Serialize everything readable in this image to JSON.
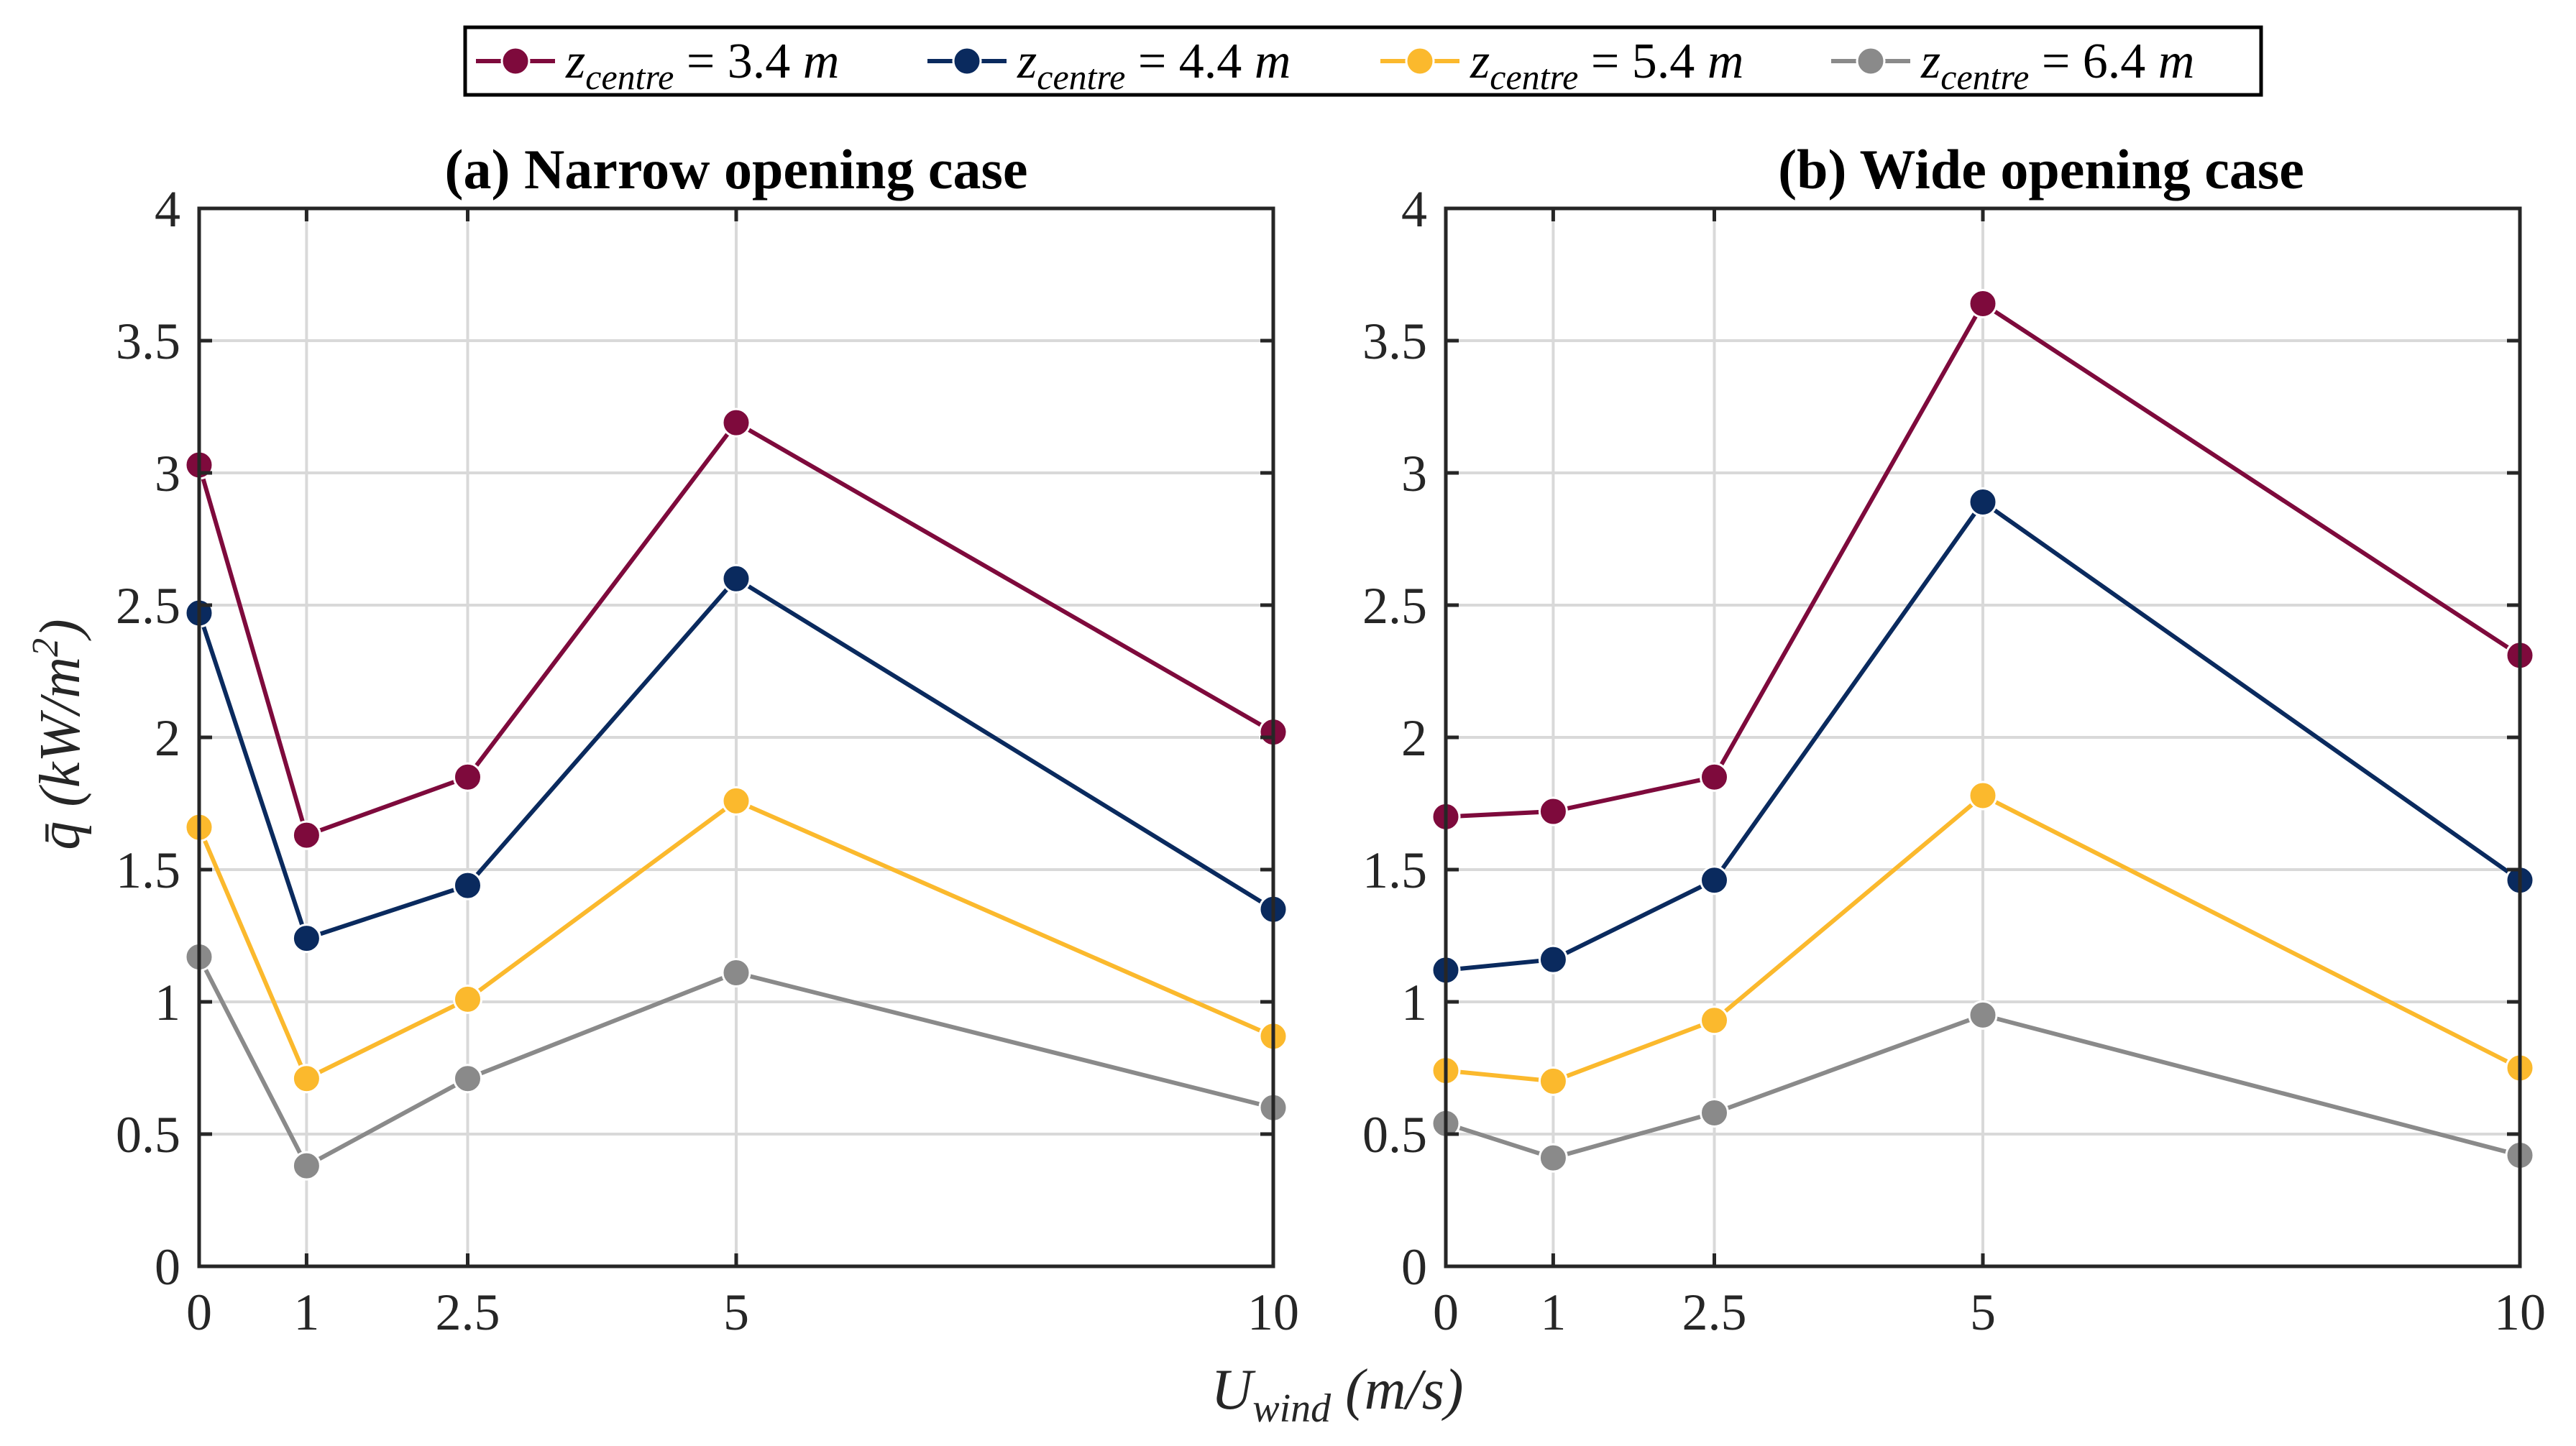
{
  "chart_data": [
    {
      "type": "line",
      "title": "(a) Narrow opening case",
      "xlabel": "U_wind (m/s)",
      "ylabel": "q̄ (kW/m²)",
      "x": [
        0,
        1,
        2.5,
        5,
        10
      ],
      "x_tick_labels": [
        "0",
        "1",
        "2.5",
        "5",
        "10"
      ],
      "y_ticks": [
        0,
        0.5,
        1,
        1.5,
        2,
        2.5,
        3,
        3.5,
        4
      ],
      "y_tick_labels": [
        "0",
        "0.5",
        "1",
        "1.5",
        "2",
        "2.5",
        "3",
        "3.5",
        "4"
      ],
      "ylim": [
        0,
        4
      ],
      "grid": true,
      "series": [
        {
          "name": "z_centre = 3.4 m",
          "color": "#7e0a3c",
          "values": [
            3.03,
            1.63,
            1.85,
            3.19,
            2.02
          ]
        },
        {
          "name": "z_centre = 4.4 m",
          "color": "#0a2a5e",
          "values": [
            2.47,
            1.24,
            1.44,
            2.6,
            1.35
          ]
        },
        {
          "name": "z_centre = 5.4 m",
          "color": "#fbb92d",
          "values": [
            1.66,
            0.71,
            1.01,
            1.76,
            0.87
          ]
        },
        {
          "name": "z_centre = 6.4 m",
          "color": "#8a8a8a",
          "values": [
            1.17,
            0.38,
            0.71,
            1.11,
            0.6
          ]
        }
      ]
    },
    {
      "type": "line",
      "title": "(b) Wide opening case",
      "xlabel": "U_wind (m/s)",
      "ylabel": "",
      "x": [
        0,
        1,
        2.5,
        5,
        10
      ],
      "x_tick_labels": [
        "0",
        "1",
        "2.5",
        "5",
        "10"
      ],
      "y_ticks": [
        0,
        0.5,
        1,
        1.5,
        2,
        2.5,
        3,
        3.5,
        4
      ],
      "y_tick_labels": [
        "0",
        "0.5",
        "1",
        "1.5",
        "2",
        "2.5",
        "3",
        "3.5",
        "4"
      ],
      "ylim": [
        0,
        4
      ],
      "grid": true,
      "series": [
        {
          "name": "z_centre = 3.4 m",
          "color": "#7e0a3c",
          "values": [
            1.7,
            1.72,
            1.85,
            3.64,
            2.31
          ]
        },
        {
          "name": "z_centre = 4.4 m",
          "color": "#0a2a5e",
          "values": [
            1.12,
            1.16,
            1.46,
            2.89,
            1.46
          ]
        },
        {
          "name": "z_centre = 5.4 m",
          "color": "#fbb92d",
          "values": [
            0.74,
            0.7,
            0.93,
            1.78,
            0.75
          ]
        },
        {
          "name": "z_centre = 6.4 m",
          "color": "#8a8a8a",
          "values": [
            0.54,
            0.41,
            0.58,
            0.95,
            0.42
          ]
        }
      ]
    }
  ],
  "legend": {
    "placement": "top-center",
    "entries": [
      {
        "var": "z",
        "sub": "centre",
        "rest": " = 3.4 ",
        "unit": "m",
        "color": "#7e0a3c"
      },
      {
        "var": "z",
        "sub": "centre",
        "rest": " = 4.4 ",
        "unit": "m",
        "color": "#0a2a5e"
      },
      {
        "var": "z",
        "sub": "centre",
        "rest": " = 5.4 ",
        "unit": "m",
        "color": "#fbb92d"
      },
      {
        "var": "z",
        "sub": "centre",
        "rest": " = 6.4 ",
        "unit": "m",
        "color": "#8a8a8a"
      }
    ]
  },
  "shared_xlabel": {
    "var": "U",
    "sub": "wind",
    "rest": " (m/s)"
  },
  "ylabel_parts": {
    "var": "q̄",
    "rest": " (kW/m",
    "sup": "2",
    "close": ")"
  }
}
